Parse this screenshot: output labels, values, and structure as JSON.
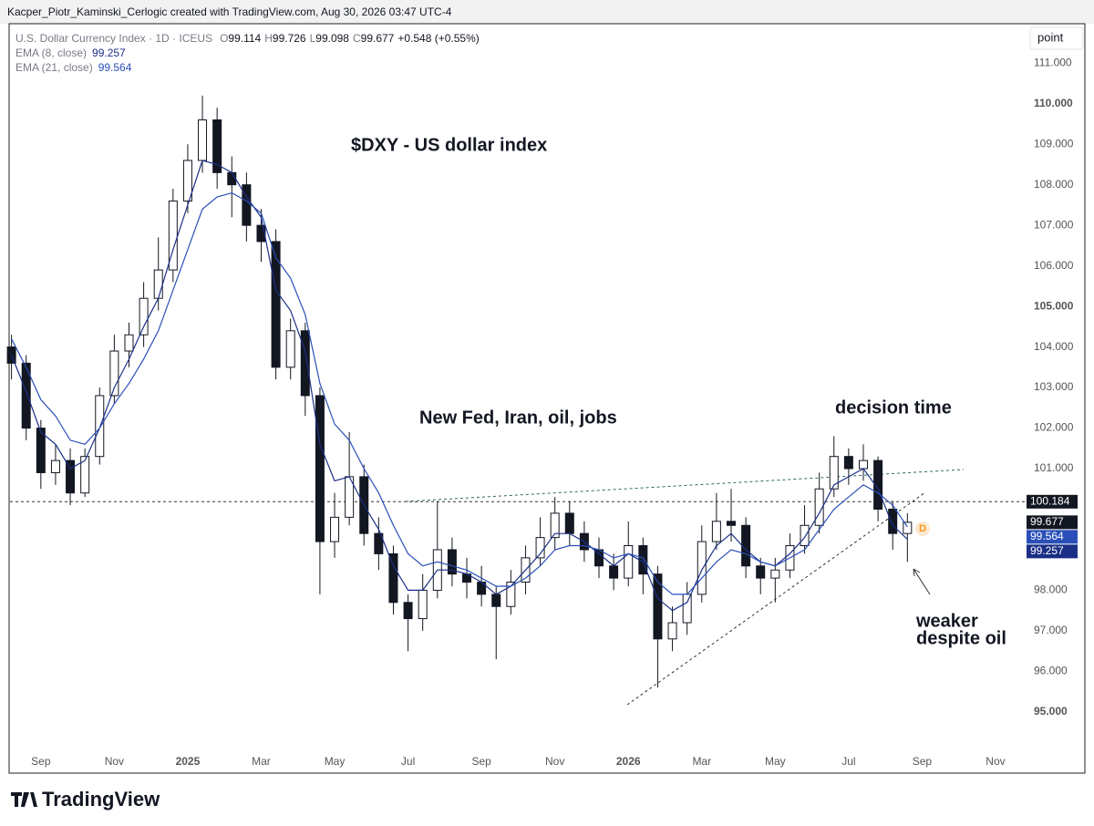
{
  "header": {
    "attribution": "Kacper_Piotr_Kaminski_Cerlogic created with TradingView.com, Aug 30, 2026 03:47 UTC-4",
    "button": "point",
    "logo": "TradingView"
  },
  "legend": {
    "symbol": "U.S. Dollar Currency Index · 1D · ICEUS",
    "labels": [
      "O",
      "H",
      "L",
      "C"
    ],
    "values": [
      99.114,
      99.726,
      99.098,
      99.677
    ],
    "change": "+0.548 (+0.55%)"
  },
  "chart_data": {
    "type": "candlestick",
    "title": "$DXY - US dollar index",
    "annotations": [
      "New Fed, Iran, oil, jobs",
      "decision time",
      "weaker",
      "despite oil"
    ],
    "marker": "D",
    "hline": 100.184,
    "x": [
      -0.8,
      -0.4,
      0,
      0.4,
      0.8,
      1.2,
      1.6,
      2.0,
      2.4,
      2.8,
      3.2,
      3.6,
      4.0,
      4.4,
      4.8,
      5.2,
      5.6,
      6.0,
      6.4,
      6.8,
      7.2,
      7.6,
      8.0,
      8.4,
      8.8,
      9.2,
      9.6,
      10.0,
      10.4,
      10.8,
      11.2,
      11.6,
      12.0,
      12.4,
      12.8,
      13.2,
      13.6,
      14.0,
      14.4,
      14.8,
      15.2,
      15.6,
      16.0,
      16.4,
      16.8,
      17.2,
      17.6,
      18.0,
      18.4,
      18.8,
      19.2,
      19.6,
      20.0,
      20.4,
      20.8,
      21.2,
      21.6,
      22.0,
      22.4,
      22.8,
      23.2,
      23.6
    ],
    "candles": {
      "open": [
        104.0,
        103.6,
        102.0,
        100.9,
        101.2,
        100.4,
        101.3,
        102.8,
        103.9,
        104.3,
        105.2,
        105.9,
        107.6,
        108.6,
        109.6,
        108.3,
        108.0,
        107.0,
        106.6,
        103.5,
        104.4,
        102.8,
        99.2,
        99.8,
        100.8,
        99.4,
        98.9,
        97.7,
        97.3,
        98.0,
        99.0,
        98.4,
        98.2,
        97.9,
        97.6,
        98.2,
        98.8,
        99.3,
        99.9,
        99.4,
        99.0,
        98.6,
        98.3,
        99.1,
        98.4,
        96.8,
        97.2,
        97.9,
        99.2,
        99.7,
        99.6,
        98.6,
        98.3,
        98.5,
        99.1,
        99.6,
        100.5,
        101.3,
        101.0,
        101.2,
        100.0,
        99.4
      ],
      "high": [
        104.3,
        103.8,
        102.2,
        101.6,
        101.5,
        101.5,
        103.0,
        104.3,
        104.6,
        105.6,
        106.7,
        107.9,
        109.0,
        110.2,
        109.9,
        108.7,
        108.3,
        107.4,
        106.9,
        104.7,
        104.6,
        103.0,
        100.4,
        101.9,
        101.1,
        99.8,
        99.1,
        97.9,
        98.4,
        100.2,
        99.3,
        98.8,
        98.6,
        98.1,
        98.5,
        99.1,
        99.8,
        100.3,
        100.2,
        99.7,
        99.3,
        98.9,
        99.7,
        99.3,
        98.6,
        97.6,
        98.2,
        99.6,
        100.4,
        100.5,
        99.8,
        98.8,
        98.8,
        99.4,
        100.1,
        100.9,
        101.8,
        101.5,
        101.6,
        101.3,
        100.2,
        99.9
      ],
      "low": [
        103.2,
        101.7,
        100.5,
        100.6,
        100.1,
        100.3,
        101.1,
        102.6,
        103.5,
        104.0,
        104.9,
        105.6,
        107.3,
        108.3,
        107.9,
        107.2,
        106.6,
        106.1,
        103.2,
        103.2,
        102.3,
        97.9,
        98.8,
        99.6,
        99.1,
        98.5,
        97.4,
        96.5,
        97.0,
        97.8,
        98.1,
        97.8,
        97.6,
        96.3,
        97.4,
        97.9,
        98.6,
        99.0,
        99.1,
        98.7,
        98.3,
        98.0,
        98.1,
        97.9,
        95.6,
        96.5,
        96.9,
        97.7,
        99.0,
        99.2,
        98.3,
        97.9,
        97.7,
        98.3,
        98.9,
        99.4,
        100.3,
        100.6,
        100.7,
        99.7,
        99.0,
        98.7
      ],
      "close": [
        103.6,
        102.0,
        100.9,
        101.2,
        100.4,
        101.3,
        102.8,
        103.9,
        104.3,
        105.2,
        105.9,
        107.6,
        108.6,
        109.6,
        108.3,
        108.0,
        107.0,
        106.6,
        103.5,
        104.4,
        102.8,
        99.2,
        99.8,
        100.8,
        99.4,
        98.9,
        97.7,
        97.3,
        98.0,
        99.0,
        98.4,
        98.2,
        97.9,
        97.6,
        98.2,
        98.8,
        99.3,
        99.9,
        99.4,
        99.0,
        98.6,
        98.3,
        99.1,
        98.4,
        96.8,
        97.2,
        97.9,
        99.2,
        99.7,
        99.6,
        98.6,
        98.3,
        98.5,
        99.1,
        99.6,
        100.5,
        101.3,
        101.0,
        101.2,
        100.0,
        99.4,
        99.677
      ]
    },
    "series": [
      {
        "name": "EMA (8, close)",
        "color": "#1b2f86",
        "values": [
          103.8,
          102.9,
          101.9,
          101.6,
          101.0,
          101.2,
          102.0,
          103.0,
          103.7,
          104.5,
          105.2,
          106.4,
          107.5,
          108.6,
          108.5,
          108.3,
          107.7,
          107.2,
          105.4,
          104.9,
          103.9,
          101.6,
          100.7,
          100.8,
          100.1,
          99.5,
          98.6,
          98.0,
          98.0,
          98.5,
          98.5,
          98.4,
          98.2,
          97.9,
          98.1,
          98.5,
          98.9,
          99.4,
          99.4,
          99.2,
          98.9,
          98.6,
          98.9,
          98.7,
          97.8,
          97.5,
          97.7,
          98.5,
          99.1,
          99.4,
          99.0,
          98.7,
          98.6,
          98.9,
          99.3,
          99.9,
          100.6,
          100.8,
          101.0,
          100.5,
          99.6,
          99.257
        ]
      },
      {
        "name": "EMA (21, close)",
        "color": "#2a4fb8",
        "values": [
          104.2,
          103.5,
          102.7,
          102.3,
          101.7,
          101.6,
          102.0,
          102.6,
          103.1,
          103.7,
          104.4,
          105.4,
          106.4,
          107.4,
          107.7,
          107.8,
          107.6,
          107.3,
          106.2,
          105.7,
          104.8,
          103.1,
          102.1,
          101.7,
          101.0,
          100.4,
          99.6,
          98.9,
          98.6,
          98.7,
          98.6,
          98.5,
          98.3,
          98.1,
          98.1,
          98.3,
          98.6,
          99.0,
          99.1,
          99.1,
          99.0,
          98.8,
          98.9,
          98.8,
          98.2,
          97.9,
          97.9,
          98.3,
          98.7,
          99.0,
          98.9,
          98.7,
          98.6,
          98.8,
          99.0,
          99.5,
          100.0,
          100.3,
          100.6,
          100.4,
          100.1,
          99.564
        ]
      }
    ],
    "xlim": [
      -0.84,
      26.82
    ],
    "xticks": [
      {
        "value": 0,
        "label": "Sep"
      },
      {
        "value": 2,
        "label": "Nov"
      },
      {
        "value": 4,
        "label": "2025"
      },
      {
        "value": 6,
        "label": "Mar"
      },
      {
        "value": 8,
        "label": "May"
      },
      {
        "value": 10,
        "label": "Jul"
      },
      {
        "value": 12,
        "label": "Sep"
      },
      {
        "value": 14,
        "label": "Nov"
      },
      {
        "value": 16,
        "label": "2026"
      },
      {
        "value": 18,
        "label": "Mar"
      },
      {
        "value": 20,
        "label": "May"
      },
      {
        "value": 22,
        "label": "Jul"
      },
      {
        "value": 24,
        "label": "Sep"
      },
      {
        "value": 26,
        "label": "Nov"
      }
    ],
    "ylim": [
      94.12,
      111.95
    ],
    "yticks": [
      {
        "value": 95,
        "label": "95.000"
      },
      {
        "value": 96,
        "label": "96.000"
      },
      {
        "value": 97,
        "label": "97.000"
      },
      {
        "value": 98,
        "label": "98.000"
      },
      {
        "value": 101,
        "label": "101.000"
      },
      {
        "value": 102,
        "label": "102.000"
      },
      {
        "value": 103,
        "label": "103.000"
      },
      {
        "value": 104,
        "label": "104.000"
      },
      {
        "value": 105,
        "label": "105.000"
      },
      {
        "value": 106,
        "label": "106.000"
      },
      {
        "value": 107,
        "label": "107.000"
      },
      {
        "value": 108,
        "label": "108.000"
      },
      {
        "value": 109,
        "label": "109.000"
      },
      {
        "value": 110,
        "label": "110.000"
      },
      {
        "value": 111,
        "label": "111.000"
      }
    ],
    "grid": false,
    "up_color": "#ffffff",
    "down_color": "#131722",
    "tag_color": "#131722"
  }
}
